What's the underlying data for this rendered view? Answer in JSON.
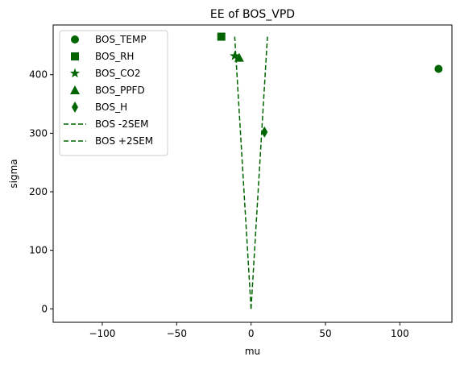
{
  "chart_data": {
    "type": "scatter",
    "title": "EE of BOS_VPD",
    "xlabel": "mu",
    "ylabel": "sigma",
    "xlim": [
      -133,
      135
    ],
    "ylim": [
      -23,
      485
    ],
    "x_ticks": [
      -100,
      -50,
      0,
      50,
      100
    ],
    "y_ticks": [
      0,
      100,
      200,
      300,
      400
    ],
    "x_tick_labels": [
      "−100",
      "−50",
      "0",
      "50",
      "100"
    ],
    "y_tick_labels": [
      "0",
      "100",
      "200",
      "300",
      "400"
    ],
    "grid": false,
    "legend_position": "top-left",
    "color": "#006400",
    "series": [
      {
        "name": "BOS_TEMP",
        "marker": "circle",
        "points": [
          {
            "x": 126,
            "y": 410
          }
        ]
      },
      {
        "name": "BOS_RH",
        "marker": "square",
        "points": [
          {
            "x": -20,
            "y": 465
          }
        ]
      },
      {
        "name": "BOS_CO2",
        "marker": "star",
        "points": [
          {
            "x": -11,
            "y": 432
          }
        ]
      },
      {
        "name": "BOS_PPFD",
        "marker": "triangle",
        "points": [
          {
            "x": -8,
            "y": 429
          }
        ]
      },
      {
        "name": "BOS_H",
        "marker": "diamond",
        "points": [
          {
            "x": 9,
            "y": 302
          }
        ]
      }
    ],
    "lines": [
      {
        "name": "BOS -2SEM",
        "style": "dashed",
        "points": [
          {
            "x": 0,
            "y": 0
          },
          {
            "x": -11,
            "y": 465
          }
        ]
      },
      {
        "name": "BOS +2SEM",
        "style": "dashed",
        "points": [
          {
            "x": 0,
            "y": 0
          },
          {
            "x": 11,
            "y": 465
          }
        ]
      }
    ]
  }
}
